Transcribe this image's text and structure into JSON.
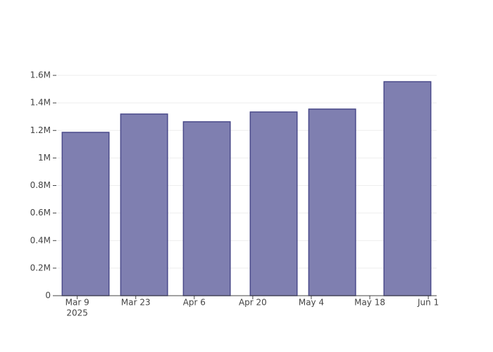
{
  "chart_data": {
    "type": "bar",
    "x": [
      "2025-03-11",
      "2025-03-25",
      "2025-04-09",
      "2025-04-25",
      "2025-05-09",
      "2025-05-27"
    ],
    "values": [
      1186000,
      1319000,
      1263000,
      1334000,
      1355000,
      1554000
    ],
    "color": "#7f7fb0",
    "line_color": "#4a4a8a",
    "xlim": [
      "2025-03-04",
      "2025-06-03"
    ],
    "xticks": [
      {
        "value": "2025-03-09",
        "label": "Mar 9"
      },
      {
        "value": "2025-03-23",
        "label": "Mar 23"
      },
      {
        "value": "2025-04-06",
        "label": "Apr 6"
      },
      {
        "value": "2025-04-20",
        "label": "Apr 20"
      },
      {
        "value": "2025-05-04",
        "label": "May 4"
      },
      {
        "value": "2025-05-18",
        "label": "May 18"
      },
      {
        "value": "2025-06-01",
        "label": "Jun 1"
      }
    ],
    "x_year_label": "2025",
    "ylim": [
      0,
      1636000
    ],
    "yticks": [
      0,
      {
        "value": 200000,
        "label": "0.2M"
      },
      {
        "value": 400000,
        "label": "0.4M"
      },
      {
        "value": 600000,
        "label": "0.6M"
      },
      {
        "value": 800000,
        "label": "0.8M"
      },
      {
        "value": 1000000,
        "label": "1M"
      },
      {
        "value": 1200000,
        "label": "1.2M"
      },
      {
        "value": 1400000,
        "label": "1.4M"
      },
      {
        "value": 1600000,
        "label": "1.6M"
      }
    ],
    "grid": true
  }
}
